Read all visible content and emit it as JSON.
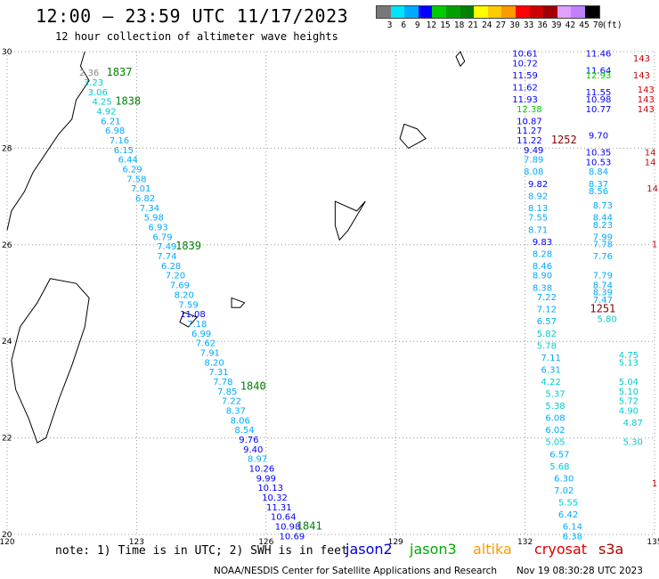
{
  "header": {
    "title": "12:00 – 23:59 UTC 11/17/2023",
    "subtitle": "12 hour collection of altimeter wave heights"
  },
  "scale": {
    "labels": [
      "3",
      "6",
      "9",
      "12",
      "15",
      "18",
      "21",
      "24",
      "27",
      "30",
      "33",
      "36",
      "39",
      "42",
      "45",
      "70",
      "(ft)"
    ],
    "colors": [
      "#787878",
      "#00e5ff",
      "#00aaff",
      "#0000ff",
      "#00cc00",
      "#00a000",
      "#008000",
      "#ffff00",
      "#ffcc00",
      "#ff9900",
      "#ff0000",
      "#cc0000",
      "#a00000",
      "#e0a0ff",
      "#c080ff",
      "#000000"
    ]
  },
  "map": {
    "lat_ticks": [
      "30",
      "28",
      "26",
      "24",
      "22",
      "20"
    ],
    "lon_ticks": [
      "120",
      "123",
      "126",
      "129",
      "132",
      "135"
    ],
    "lat_values": [
      30,
      28,
      26,
      24,
      22,
      20
    ],
    "lon_values": [
      120,
      123,
      126,
      129,
      132,
      135
    ]
  },
  "passes": [
    {
      "id": "1837",
      "lat": 29.5,
      "lon": 122.6,
      "color": "#008000"
    },
    {
      "id": "1838",
      "lat": 28.9,
      "lon": 122.8,
      "color": "#008000"
    },
    {
      "id": "1839",
      "lat": 25.9,
      "lon": 124.2,
      "color": "#008000"
    },
    {
      "id": "1840",
      "lat": 23.0,
      "lon": 125.7,
      "color": "#008000"
    },
    {
      "id": "1841",
      "lat": 20.1,
      "lon": 127.0,
      "color": "#008000"
    },
    {
      "id": "1252",
      "lat": 28.1,
      "lon": 132.9,
      "color": "#880000"
    },
    {
      "id": "1251",
      "lat": 24.6,
      "lon": 133.8,
      "color": "#880000"
    }
  ],
  "track_west": [
    {
      "lat": 29.5,
      "lon": 121.9,
      "v": "2.36",
      "c": "#888888"
    },
    {
      "lat": 29.3,
      "lon": 122.0,
      "v": "3.23",
      "c": "#00cccc"
    },
    {
      "lat": 29.1,
      "lon": 122.1,
      "v": "3.06",
      "c": "#00cccc"
    },
    {
      "lat": 28.9,
      "lon": 122.2,
      "v": "4.25",
      "c": "#00cccc"
    },
    {
      "lat": 28.7,
      "lon": 122.3,
      "v": "4.92",
      "c": "#00cccc"
    },
    {
      "lat": 28.5,
      "lon": 122.4,
      "v": "6.21",
      "c": "#00aaff"
    },
    {
      "lat": 28.3,
      "lon": 122.5,
      "v": "6.98",
      "c": "#00aaff"
    },
    {
      "lat": 28.1,
      "lon": 122.6,
      "v": "7.16",
      "c": "#00aaff"
    },
    {
      "lat": 27.9,
      "lon": 122.7,
      "v": "6.15",
      "c": "#00aaff"
    },
    {
      "lat": 27.7,
      "lon": 122.8,
      "v": "6.44",
      "c": "#00aaff"
    },
    {
      "lat": 27.5,
      "lon": 122.9,
      "v": "6.29",
      "c": "#00aaff"
    },
    {
      "lat": 27.3,
      "lon": 123.0,
      "v": "7.58",
      "c": "#00aaff"
    },
    {
      "lat": 27.1,
      "lon": 123.1,
      "v": "7.01",
      "c": "#00aaff"
    },
    {
      "lat": 26.9,
      "lon": 123.2,
      "v": "6.82",
      "c": "#00aaff"
    },
    {
      "lat": 26.7,
      "lon": 123.3,
      "v": "7.34",
      "c": "#00aaff"
    },
    {
      "lat": 26.5,
      "lon": 123.4,
      "v": "5.98",
      "c": "#00aaff"
    },
    {
      "lat": 26.3,
      "lon": 123.5,
      "v": "6.93",
      "c": "#00aaff"
    },
    {
      "lat": 26.1,
      "lon": 123.6,
      "v": "6.79",
      "c": "#00aaff"
    },
    {
      "lat": 25.9,
      "lon": 123.7,
      "v": "7.49",
      "c": "#00aaff"
    },
    {
      "lat": 25.7,
      "lon": 123.7,
      "v": "7.74",
      "c": "#00aaff"
    },
    {
      "lat": 25.5,
      "lon": 123.8,
      "v": "6.28",
      "c": "#00aaff"
    },
    {
      "lat": 25.3,
      "lon": 123.9,
      "v": "7.20",
      "c": "#00aaff"
    },
    {
      "lat": 25.1,
      "lon": 124.0,
      "v": "7.69",
      "c": "#00aaff"
    },
    {
      "lat": 24.9,
      "lon": 124.1,
      "v": "8.20",
      "c": "#00aaff"
    },
    {
      "lat": 24.7,
      "lon": 124.2,
      "v": "7.59",
      "c": "#00aaff"
    },
    {
      "lat": 24.5,
      "lon": 124.3,
      "v": "11.08",
      "c": "#0000ff"
    },
    {
      "lat": 24.3,
      "lon": 124.4,
      "v": "7.18",
      "c": "#00aaff"
    },
    {
      "lat": 24.1,
      "lon": 124.5,
      "v": "6.99",
      "c": "#00aaff"
    },
    {
      "lat": 23.9,
      "lon": 124.6,
      "v": "7.62",
      "c": "#00aaff"
    },
    {
      "lat": 23.7,
      "lon": 124.7,
      "v": "7.91",
      "c": "#00aaff"
    },
    {
      "lat": 23.5,
      "lon": 124.8,
      "v": "8.20",
      "c": "#00aaff"
    },
    {
      "lat": 23.3,
      "lon": 124.9,
      "v": "7.31",
      "c": "#00aaff"
    },
    {
      "lat": 23.1,
      "lon": 125.0,
      "v": "7.78",
      "c": "#00aaff"
    },
    {
      "lat": 22.9,
      "lon": 125.1,
      "v": "7.85",
      "c": "#00aaff"
    },
    {
      "lat": 22.7,
      "lon": 125.2,
      "v": "7.22",
      "c": "#00aaff"
    },
    {
      "lat": 22.5,
      "lon": 125.3,
      "v": "8.37",
      "c": "#00aaff"
    },
    {
      "lat": 22.3,
      "lon": 125.4,
      "v": "8.06",
      "c": "#00aaff"
    },
    {
      "lat": 22.1,
      "lon": 125.5,
      "v": "8.54",
      "c": "#00aaff"
    },
    {
      "lat": 21.9,
      "lon": 125.6,
      "v": "9.76",
      "c": "#0000ff"
    },
    {
      "lat": 21.7,
      "lon": 125.7,
      "v": "9.40",
      "c": "#0000ff"
    },
    {
      "lat": 21.5,
      "lon": 125.8,
      "v": "8.97",
      "c": "#00aaff"
    },
    {
      "lat": 21.3,
      "lon": 125.9,
      "v": "10.26",
      "c": "#0000ff"
    },
    {
      "lat": 21.1,
      "lon": 126.0,
      "v": "9.99",
      "c": "#0000ff"
    },
    {
      "lat": 20.9,
      "lon": 126.1,
      "v": "10.13",
      "c": "#0000ff"
    },
    {
      "lat": 20.7,
      "lon": 126.2,
      "v": "10.32",
      "c": "#0000ff"
    },
    {
      "lat": 20.5,
      "lon": 126.3,
      "v": "11.31",
      "c": "#0000ff"
    },
    {
      "lat": 20.3,
      "lon": 126.4,
      "v": "10.64",
      "c": "#0000ff"
    },
    {
      "lat": 20.1,
      "lon": 126.5,
      "v": "10.98",
      "c": "#0000ff"
    },
    {
      "lat": 19.9,
      "lon": 126.6,
      "v": "10.69",
      "c": "#0000ff"
    }
  ],
  "track_east": [
    {
      "lat": 29.9,
      "lon": 132.0,
      "v": "10.61",
      "c": "#0000ff"
    },
    {
      "lat": 29.7,
      "lon": 132.0,
      "v": "10.72",
      "c": "#0000ff"
    },
    {
      "lat": 29.45,
      "lon": 132.0,
      "v": "11.59",
      "c": "#0000ff"
    },
    {
      "lat": 29.2,
      "lon": 132.0,
      "v": "11.62",
      "c": "#0000ff"
    },
    {
      "lat": 28.95,
      "lon": 132.0,
      "v": "11.93",
      "c": "#0000ff"
    },
    {
      "lat": 28.75,
      "lon": 132.1,
      "v": "12.38",
      "c": "#00cc00"
    },
    {
      "lat": 28.5,
      "lon": 132.1,
      "v": "10.87",
      "c": "#0000ff"
    },
    {
      "lat": 28.3,
      "lon": 132.1,
      "v": "11.27",
      "c": "#0000ff"
    },
    {
      "lat": 28.1,
      "lon": 132.1,
      "v": "11.22",
      "c": "#0000ff"
    },
    {
      "lat": 27.9,
      "lon": 132.2,
      "v": "9.49",
      "c": "#0000ff"
    },
    {
      "lat": 27.7,
      "lon": 132.2,
      "v": "7.89",
      "c": "#00aaff"
    },
    {
      "lat": 27.45,
      "lon": 132.2,
      "v": "8.08",
      "c": "#00aaff"
    },
    {
      "lat": 27.2,
      "lon": 132.3,
      "v": "9.82",
      "c": "#0000ff"
    },
    {
      "lat": 26.95,
      "lon": 132.3,
      "v": "8.92",
      "c": "#00aaff"
    },
    {
      "lat": 26.7,
      "lon": 132.3,
      "v": "8.13",
      "c": "#00aaff"
    },
    {
      "lat": 26.5,
      "lon": 132.3,
      "v": "7.55",
      "c": "#00aaff"
    },
    {
      "lat": 26.25,
      "lon": 132.3,
      "v": "8.71",
      "c": "#00aaff"
    },
    {
      "lat": 26.0,
      "lon": 132.4,
      "v": "9.83",
      "c": "#0000ff"
    },
    {
      "lat": 25.75,
      "lon": 132.4,
      "v": "8.28",
      "c": "#00aaff"
    },
    {
      "lat": 25.5,
      "lon": 132.4,
      "v": "8.46",
      "c": "#00aaff"
    },
    {
      "lat": 25.3,
      "lon": 132.4,
      "v": "8.90",
      "c": "#00aaff"
    },
    {
      "lat": 25.05,
      "lon": 132.4,
      "v": "8.38",
      "c": "#00aaff"
    },
    {
      "lat": 24.85,
      "lon": 132.5,
      "v": "7.22",
      "c": "#00aaff"
    },
    {
      "lat": 24.6,
      "lon": 132.5,
      "v": "7.12",
      "c": "#00aaff"
    },
    {
      "lat": 24.35,
      "lon": 132.5,
      "v": "6.57",
      "c": "#00aaff"
    },
    {
      "lat": 24.1,
      "lon": 132.5,
      "v": "5.82",
      "c": "#00cccc"
    },
    {
      "lat": 23.85,
      "lon": 132.5,
      "v": "5.78",
      "c": "#00cccc"
    },
    {
      "lat": 23.6,
      "lon": 132.6,
      "v": "7.11",
      "c": "#00aaff"
    },
    {
      "lat": 23.35,
      "lon": 132.6,
      "v": "6.31",
      "c": "#00aaff"
    },
    {
      "lat": 23.1,
      "lon": 132.6,
      "v": "4.22",
      "c": "#00cccc"
    },
    {
      "lat": 22.85,
      "lon": 132.7,
      "v": "5.37",
      "c": "#00cccc"
    },
    {
      "lat": 22.6,
      "lon": 132.7,
      "v": "5.38",
      "c": "#00cccc"
    },
    {
      "lat": 22.35,
      "lon": 132.7,
      "v": "6.08",
      "c": "#00aaff"
    },
    {
      "lat": 22.1,
      "lon": 132.7,
      "v": "6.02",
      "c": "#00aaff"
    },
    {
      "lat": 21.85,
      "lon": 132.7,
      "v": "5.05",
      "c": "#00cccc"
    },
    {
      "lat": 21.6,
      "lon": 132.8,
      "v": "6.57",
      "c": "#00aaff"
    },
    {
      "lat": 21.35,
      "lon": 132.8,
      "v": "5.68",
      "c": "#00cccc"
    },
    {
      "lat": 21.1,
      "lon": 132.9,
      "v": "6.30",
      "c": "#00aaff"
    },
    {
      "lat": 20.85,
      "lon": 132.9,
      "v": "7.02",
      "c": "#00aaff"
    },
    {
      "lat": 20.6,
      "lon": 133.0,
      "v": "5.55",
      "c": "#00cccc"
    },
    {
      "lat": 20.35,
      "lon": 133.0,
      "v": "6.42",
      "c": "#00aaff"
    },
    {
      "lat": 20.1,
      "lon": 133.1,
      "v": "6.14",
      "c": "#00aaff"
    },
    {
      "lat": 19.9,
      "lon": 133.1,
      "v": "6.38",
      "c": "#00aaff"
    }
  ],
  "track_far_east": [
    {
      "lat": 29.9,
      "lon": 133.7,
      "v": "11.46",
      "c": "#0000ff"
    },
    {
      "lat": 29.55,
      "lon": 133.7,
      "v": "11.64",
      "c": "#0000ff"
    },
    {
      "lat": 29.45,
      "lon": 133.7,
      "v": "12.93",
      "c": "#00cc00"
    },
    {
      "lat": 29.1,
      "lon": 133.7,
      "v": "11.55",
      "c": "#0000ff"
    },
    {
      "lat": 28.95,
      "lon": 133.7,
      "v": "10.98",
      "c": "#0000ff"
    },
    {
      "lat": 28.75,
      "lon": 133.7,
      "v": "10.77",
      "c": "#0000ff"
    },
    {
      "lat": 28.2,
      "lon": 133.7,
      "v": "9.70",
      "c": "#0000ff"
    },
    {
      "lat": 27.85,
      "lon": 133.7,
      "v": "10.35",
      "c": "#0000ff"
    },
    {
      "lat": 27.65,
      "lon": 133.7,
      "v": "10.53",
      "c": "#0000ff"
    },
    {
      "lat": 27.45,
      "lon": 133.7,
      "v": "8.84",
      "c": "#00aaff"
    },
    {
      "lat": 27.2,
      "lon": 133.7,
      "v": "8.37",
      "c": "#00aaff"
    },
    {
      "lat": 27.05,
      "lon": 133.7,
      "v": "8.56",
      "c": "#00aaff"
    },
    {
      "lat": 26.75,
      "lon": 133.8,
      "v": "8.73",
      "c": "#00aaff"
    },
    {
      "lat": 26.5,
      "lon": 133.8,
      "v": "8.44",
      "c": "#00aaff"
    },
    {
      "lat": 26.35,
      "lon": 133.8,
      "v": "8.23",
      "c": "#00aaff"
    },
    {
      "lat": 26.1,
      "lon": 133.8,
      "v": "7.99",
      "c": "#00aaff"
    },
    {
      "lat": 25.95,
      "lon": 133.8,
      "v": "7.78",
      "c": "#00aaff"
    },
    {
      "lat": 25.7,
      "lon": 133.8,
      "v": "7.76",
      "c": "#00aaff"
    },
    {
      "lat": 25.3,
      "lon": 133.8,
      "v": "7.79",
      "c": "#00aaff"
    },
    {
      "lat": 25.1,
      "lon": 133.8,
      "v": "8.74",
      "c": "#00aaff"
    },
    {
      "lat": 24.95,
      "lon": 133.8,
      "v": "8.39",
      "c": "#00aaff"
    },
    {
      "lat": 24.8,
      "lon": 133.8,
      "v": "7.47",
      "c": "#00aaff"
    },
    {
      "lat": 24.4,
      "lon": 133.9,
      "v": "5.80",
      "c": "#00cccc"
    },
    {
      "lat": 23.65,
      "lon": 134.4,
      "v": "4.75",
      "c": "#00cccc"
    },
    {
      "lat": 23.5,
      "lon": 134.4,
      "v": "5.13",
      "c": "#00cccc"
    },
    {
      "lat": 23.1,
      "lon": 134.4,
      "v": "5.04",
      "c": "#00cccc"
    },
    {
      "lat": 22.9,
      "lon": 134.4,
      "v": "5.10",
      "c": "#00cccc"
    },
    {
      "lat": 22.7,
      "lon": 134.4,
      "v": "5.72",
      "c": "#00cccc"
    },
    {
      "lat": 22.5,
      "lon": 134.4,
      "v": "4.90",
      "c": "#00cccc"
    },
    {
      "lat": 22.25,
      "lon": 134.5,
      "v": "4.87",
      "c": "#00cccc"
    },
    {
      "lat": 21.85,
      "lon": 134.5,
      "v": "5.30",
      "c": "#00cccc"
    }
  ],
  "track_red": [
    {
      "lat": 29.8,
      "lon": 134.7,
      "v": "143",
      "c": "#cc0000"
    },
    {
      "lat": 29.45,
      "lon": 134.7,
      "v": "143",
      "c": "#cc0000"
    },
    {
      "lat": 29.15,
      "lon": 134.8,
      "v": "143",
      "c": "#cc0000"
    },
    {
      "lat": 28.95,
      "lon": 134.8,
      "v": "143",
      "c": "#cc0000"
    },
    {
      "lat": 28.75,
      "lon": 134.8,
      "v": "143",
      "c": "#cc0000"
    },
    {
      "lat": 27.85,
      "lon": 134.9,
      "v": "14",
      "c": "#cc0000"
    },
    {
      "lat": 27.65,
      "lon": 134.9,
      "v": "14",
      "c": "#cc0000"
    },
    {
      "lat": 27.1,
      "lon": 134.95,
      "v": "14",
      "c": "#cc0000"
    },
    {
      "lat": 25.95,
      "lon": 135.0,
      "v": "1",
      "c": "#cc0000"
    },
    {
      "lat": 21.0,
      "lon": 135.0,
      "v": "1",
      "c": "#cc0000"
    }
  ],
  "footer": {
    "note": "note: 1) Time is in UTC; 2) SWH is in feet",
    "satellites": [
      {
        "name": "jason2",
        "color": "#0000dd"
      },
      {
        "name": "jason3",
        "color": "#00aa00"
      },
      {
        "name": "altika",
        "color": "#ff9900"
      },
      {
        "name": "cryosat",
        "color": "#dd0000"
      },
      {
        "name": "s3a",
        "color": "#aa0000"
      }
    ],
    "credit": "NOAA/NESDIS Center for Satellite Applications and Research",
    "stamp": "Nov 19 08:30:28 UTC 2023"
  }
}
